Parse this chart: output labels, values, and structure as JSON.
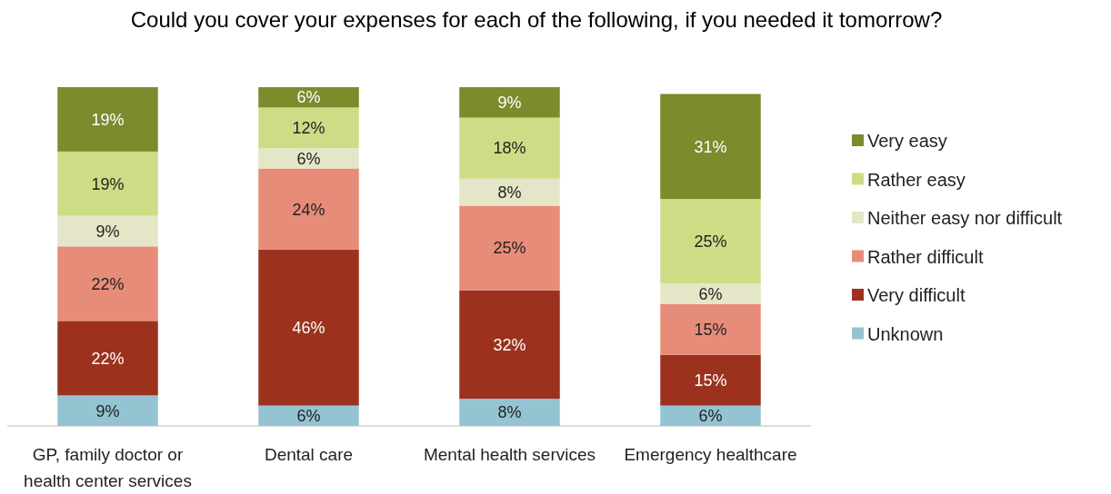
{
  "chart_data": {
    "type": "bar",
    "stacked": true,
    "title": "Could you cover your expenses for each of the following, if you needed it tomorrow?",
    "categories": [
      "GP, family doctor or health center services",
      "Dental care",
      "Mental health services",
      "Emergency healthcare"
    ],
    "series": [
      {
        "name": "Unknown",
        "color": "#94c4d2",
        "values": [
          9,
          6,
          8,
          6
        ],
        "value_labels": [
          "9%",
          "6%",
          "8%",
          "6%"
        ]
      },
      {
        "name": "Very difficult",
        "color": "#9c321e",
        "values": [
          22,
          46,
          32,
          15
        ],
        "value_labels": [
          "22%",
          "46%",
          "32%",
          "15%"
        ]
      },
      {
        "name": "Rather difficult",
        "color": "#e88c7a",
        "values": [
          22,
          24,
          25,
          15
        ],
        "value_labels": [
          "22%",
          "24%",
          "25%",
          "15%"
        ]
      },
      {
        "name": "Neither easy nor difficult",
        "color": "#e5e6c8",
        "values": [
          9,
          6,
          8,
          6
        ],
        "value_labels": [
          "9%",
          "6%",
          "8%",
          "6%"
        ]
      },
      {
        "name": "Rather easy",
        "color": "#cddd86",
        "values": [
          19,
          12,
          18,
          25
        ],
        "value_labels": [
          "19%",
          "12%",
          "18%",
          "25%"
        ]
      },
      {
        "name": "Very easy",
        "color": "#7a8c2c",
        "values": [
          19,
          6,
          9,
          31
        ],
        "value_labels": [
          "19%",
          "6%",
          "9%",
          "31%"
        ]
      }
    ],
    "tick_labels": "x",
    "legend": "right"
  }
}
